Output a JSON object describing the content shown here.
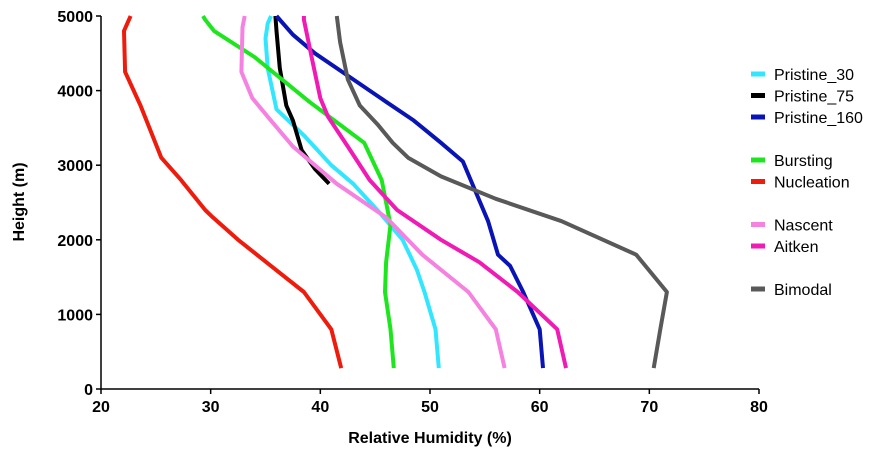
{
  "chart_data": {
    "type": "line",
    "xlabel": "Relative Humidity (%)",
    "ylabel": "Height (m)",
    "xlim": [
      20,
      80
    ],
    "ylim": [
      0,
      5000
    ],
    "xticks": [
      "20",
      "30",
      "40",
      "50",
      "60",
      "70",
      "80"
    ],
    "yticks": [
      "0",
      "1000",
      "2000",
      "3000",
      "4000",
      "5000"
    ],
    "grid": false,
    "legend_position": "right",
    "series": [
      {
        "name": "Pristine_30",
        "color": "#33e6ff",
        "points": [
          [
            50.8,
            280
          ],
          [
            50.5,
            800
          ],
          [
            49.5,
            1300
          ],
          [
            48.8,
            1600
          ],
          [
            47.5,
            2000
          ],
          [
            45.5,
            2350
          ],
          [
            43.0,
            2750
          ],
          [
            41.0,
            3000
          ],
          [
            38.5,
            3400
          ],
          [
            36.0,
            3750
          ],
          [
            35.2,
            4300
          ],
          [
            35.0,
            4700
          ],
          [
            35.2,
            4900
          ],
          [
            35.5,
            5000
          ]
        ]
      },
      {
        "name": "Pristine_75",
        "color": "#000000",
        "points": [
          [
            40.8,
            2750
          ],
          [
            39.5,
            2950
          ],
          [
            38.3,
            3200
          ],
          [
            37.5,
            3600
          ],
          [
            36.9,
            3800
          ],
          [
            36.3,
            4300
          ],
          [
            36.0,
            4800
          ],
          [
            35.9,
            5000
          ]
        ]
      },
      {
        "name": "Pristine_160",
        "color": "#0a14b4",
        "points": [
          [
            60.3,
            280
          ],
          [
            60.0,
            800
          ],
          [
            58.5,
            1300
          ],
          [
            57.3,
            1650
          ],
          [
            56.2,
            1800
          ],
          [
            55.3,
            2250
          ],
          [
            54.0,
            2700
          ],
          [
            53.0,
            3050
          ],
          [
            51.0,
            3300
          ],
          [
            48.5,
            3600
          ],
          [
            46.0,
            3850
          ],
          [
            43.0,
            4150
          ],
          [
            39.5,
            4500
          ],
          [
            37.5,
            4750
          ],
          [
            36.0,
            5000
          ]
        ]
      },
      {
        "name": "Bursting",
        "color": "#1ee61e",
        "points": [
          [
            46.7,
            280
          ],
          [
            46.4,
            800
          ],
          [
            45.9,
            1300
          ],
          [
            46.0,
            1700
          ],
          [
            46.4,
            2200
          ],
          [
            45.6,
            2800
          ],
          [
            44.0,
            3300
          ],
          [
            39.0,
            3850
          ],
          [
            34.0,
            4450
          ],
          [
            30.3,
            4800
          ],
          [
            29.5,
            4950
          ],
          [
            29.3,
            5000
          ]
        ]
      },
      {
        "name": "Nucleation",
        "color": "#ee1c0c",
        "points": [
          [
            41.9,
            280
          ],
          [
            41.0,
            800
          ],
          [
            38.5,
            1300
          ],
          [
            35.5,
            1650
          ],
          [
            32.5,
            2000
          ],
          [
            30.2,
            2300
          ],
          [
            29.5,
            2400
          ],
          [
            27.3,
            2800
          ],
          [
            25.5,
            3100
          ],
          [
            23.6,
            3800
          ],
          [
            22.2,
            4250
          ],
          [
            22.1,
            4800
          ],
          [
            22.7,
            5000
          ]
        ]
      },
      {
        "name": "Nascent",
        "color": "#f581e0",
        "points": [
          [
            56.8,
            280
          ],
          [
            56.0,
            800
          ],
          [
            53.5,
            1300
          ],
          [
            49.3,
            1800
          ],
          [
            46.0,
            2300
          ],
          [
            41.5,
            2750
          ],
          [
            37.5,
            3250
          ],
          [
            35.2,
            3650
          ],
          [
            33.8,
            3900
          ],
          [
            32.8,
            4250
          ],
          [
            32.9,
            4850
          ],
          [
            33.1,
            5000
          ]
        ]
      },
      {
        "name": "Aitken",
        "color": "#f01bb4",
        "points": [
          [
            62.4,
            280
          ],
          [
            61.6,
            800
          ],
          [
            58.0,
            1300
          ],
          [
            54.5,
            1700
          ],
          [
            51.0,
            2000
          ],
          [
            47.0,
            2400
          ],
          [
            44.5,
            2800
          ],
          [
            42.5,
            3250
          ],
          [
            40.7,
            3650
          ],
          [
            40.0,
            3900
          ],
          [
            39.2,
            4450
          ],
          [
            38.5,
            4950
          ],
          [
            38.5,
            5000
          ]
        ]
      },
      {
        "name": "Bimodal",
        "color": "#595959",
        "points": [
          [
            70.4,
            280
          ],
          [
            71.0,
            800
          ],
          [
            71.6,
            1300
          ],
          [
            68.8,
            1800
          ],
          [
            62.0,
            2250
          ],
          [
            56.0,
            2550
          ],
          [
            51.0,
            2850
          ],
          [
            48.0,
            3100
          ],
          [
            46.6,
            3300
          ],
          [
            45.2,
            3550
          ],
          [
            43.6,
            3800
          ],
          [
            42.5,
            4150
          ],
          [
            41.8,
            4650
          ],
          [
            41.5,
            5000
          ]
        ]
      }
    ],
    "legend": {
      "groups": [
        [
          "Pristine_30",
          "Pristine_75",
          "Pristine_160"
        ],
        [
          "Bursting",
          "Nucleation"
        ],
        [
          "Nascent",
          "Aitken"
        ],
        [
          "Bimodal"
        ]
      ]
    }
  }
}
